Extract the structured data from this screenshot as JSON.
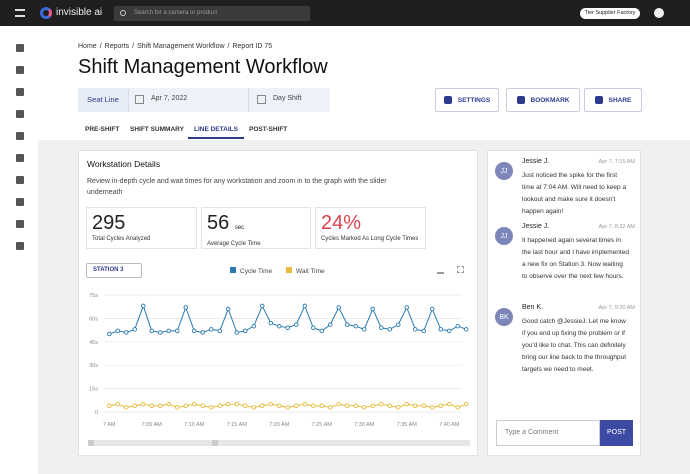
{
  "topbar": {
    "brand": "invisible ai",
    "search_placeholder": "Search for a camera or product",
    "account": "Tier Supplier Factory"
  },
  "breadcrumb": {
    "items": [
      "Home",
      "Reports",
      "Shift Management Workflow",
      "Report ID 75"
    ],
    "separator": "/"
  },
  "title": "Shift Management Workflow",
  "filters": {
    "line": "Seat Line",
    "date": "Apr 7, 2022",
    "shift": "Day Shift"
  },
  "actions": [
    "SETTINGS",
    "BOOKMARK",
    "SHARE"
  ],
  "tabs": {
    "items": [
      "PRE-SHIFT",
      "SHIFT SUMMARY",
      "LINE DETAILS",
      "POST-SHIFT"
    ],
    "active": 2
  },
  "card": {
    "title": "Workstation Details",
    "description": "Review in-depth cycle and wait times for any workstation and zoom in to the graph with the slider underneath",
    "stats": [
      {
        "value": 295,
        "label": "Total Cycles Analyzed"
      },
      {
        "value": 56,
        "unit": "sec",
        "label": "Average Cycle Time"
      },
      {
        "value": "24%",
        "label": "Cycles Marked As Long Cycle Times"
      }
    ],
    "station": "STATION 3"
  },
  "chart_data": {
    "type": "line",
    "x": [
      0,
      1,
      2,
      3,
      4,
      5,
      6,
      7,
      8,
      9,
      10,
      11,
      12,
      13,
      14,
      15,
      16,
      17,
      18,
      19,
      20,
      21,
      22,
      23,
      24,
      25,
      26,
      27,
      28,
      29,
      30,
      31,
      32,
      33,
      34,
      35,
      36,
      37,
      38,
      39,
      40,
      41,
      42
    ],
    "xlim": [
      -2.5,
      41.5
    ],
    "xticks": [
      {
        "value": 0,
        "label": "7 AM"
      },
      {
        "value": 5,
        "label": "7:05 AM"
      },
      {
        "value": 10,
        "label": "7:10 AM"
      },
      {
        "value": 15,
        "label": "7:15 AM"
      },
      {
        "value": 20,
        "label": "7:20 AM"
      },
      {
        "value": 25,
        "label": "7:25 AM"
      },
      {
        "value": 30,
        "label": "7:30 AM"
      },
      {
        "value": 35,
        "label": "7:35 AM"
      },
      {
        "value": 40,
        "label": "7:40 AM"
      }
    ],
    "ylim": [
      0,
      75
    ],
    "yticks": [
      {
        "value": 0,
        "label": "0"
      },
      {
        "value": 15,
        "label": "15s"
      },
      {
        "value": 30,
        "label": "30s"
      },
      {
        "value": 45,
        "label": "45s"
      },
      {
        "value": 60,
        "label": "60s"
      },
      {
        "value": 75,
        "label": "75s"
      }
    ],
    "grid": true,
    "series": [
      {
        "name": "Cycle Time",
        "color": "#2a7ab0",
        "values": [
          50,
          52,
          51,
          53,
          68,
          52,
          51,
          52,
          52,
          67,
          52,
          51,
          53,
          52,
          66,
          51,
          52,
          55,
          68,
          57,
          55,
          54,
          56,
          68,
          54,
          52,
          56,
          67,
          56,
          55,
          53,
          66,
          54,
          53,
          56,
          67,
          53,
          52,
          66,
          53,
          52,
          55,
          53
        ]
      },
      {
        "name": "Wait Time",
        "color": "#e8b93a",
        "values": [
          4,
          5,
          3,
          4,
          5,
          4,
          4,
          5,
          3,
          4,
          5,
          4,
          3,
          4,
          5,
          5,
          4,
          3,
          4,
          5,
          4,
          3,
          4,
          5,
          4,
          4,
          3,
          5,
          4,
          4,
          3,
          4,
          5,
          4,
          3,
          5,
          4,
          4,
          3,
          4,
          5,
          3,
          5
        ]
      }
    ]
  },
  "comments": [
    {
      "initials": "JJ",
      "name": "Jessie J.",
      "time": "Apr 7, 7:15 AM",
      "text": "Just noticed the spike for the first time at 7:04 AM. Will need to keep a lookout and make sure it doesn't happen again!"
    },
    {
      "initials": "JJ",
      "name": "Jessie J.",
      "time": "Apr 7, 8:32 AM",
      "text": "It happened again several times in the last hour and I have implemented a new fix on Station 3. Now waiting to observe over the next few hours."
    },
    {
      "initials": "BK",
      "name": "Ben K.",
      "time": "Apr 7, 9:20 AM",
      "text": "Good catch @JessieJ. Let me know if you end up fixing the problem or if you'd like to chat. This can definitely bring our line back to the throughput targets we need to meet."
    }
  ],
  "comment_input": {
    "placeholder": "Type a Comment",
    "button": "POST"
  }
}
